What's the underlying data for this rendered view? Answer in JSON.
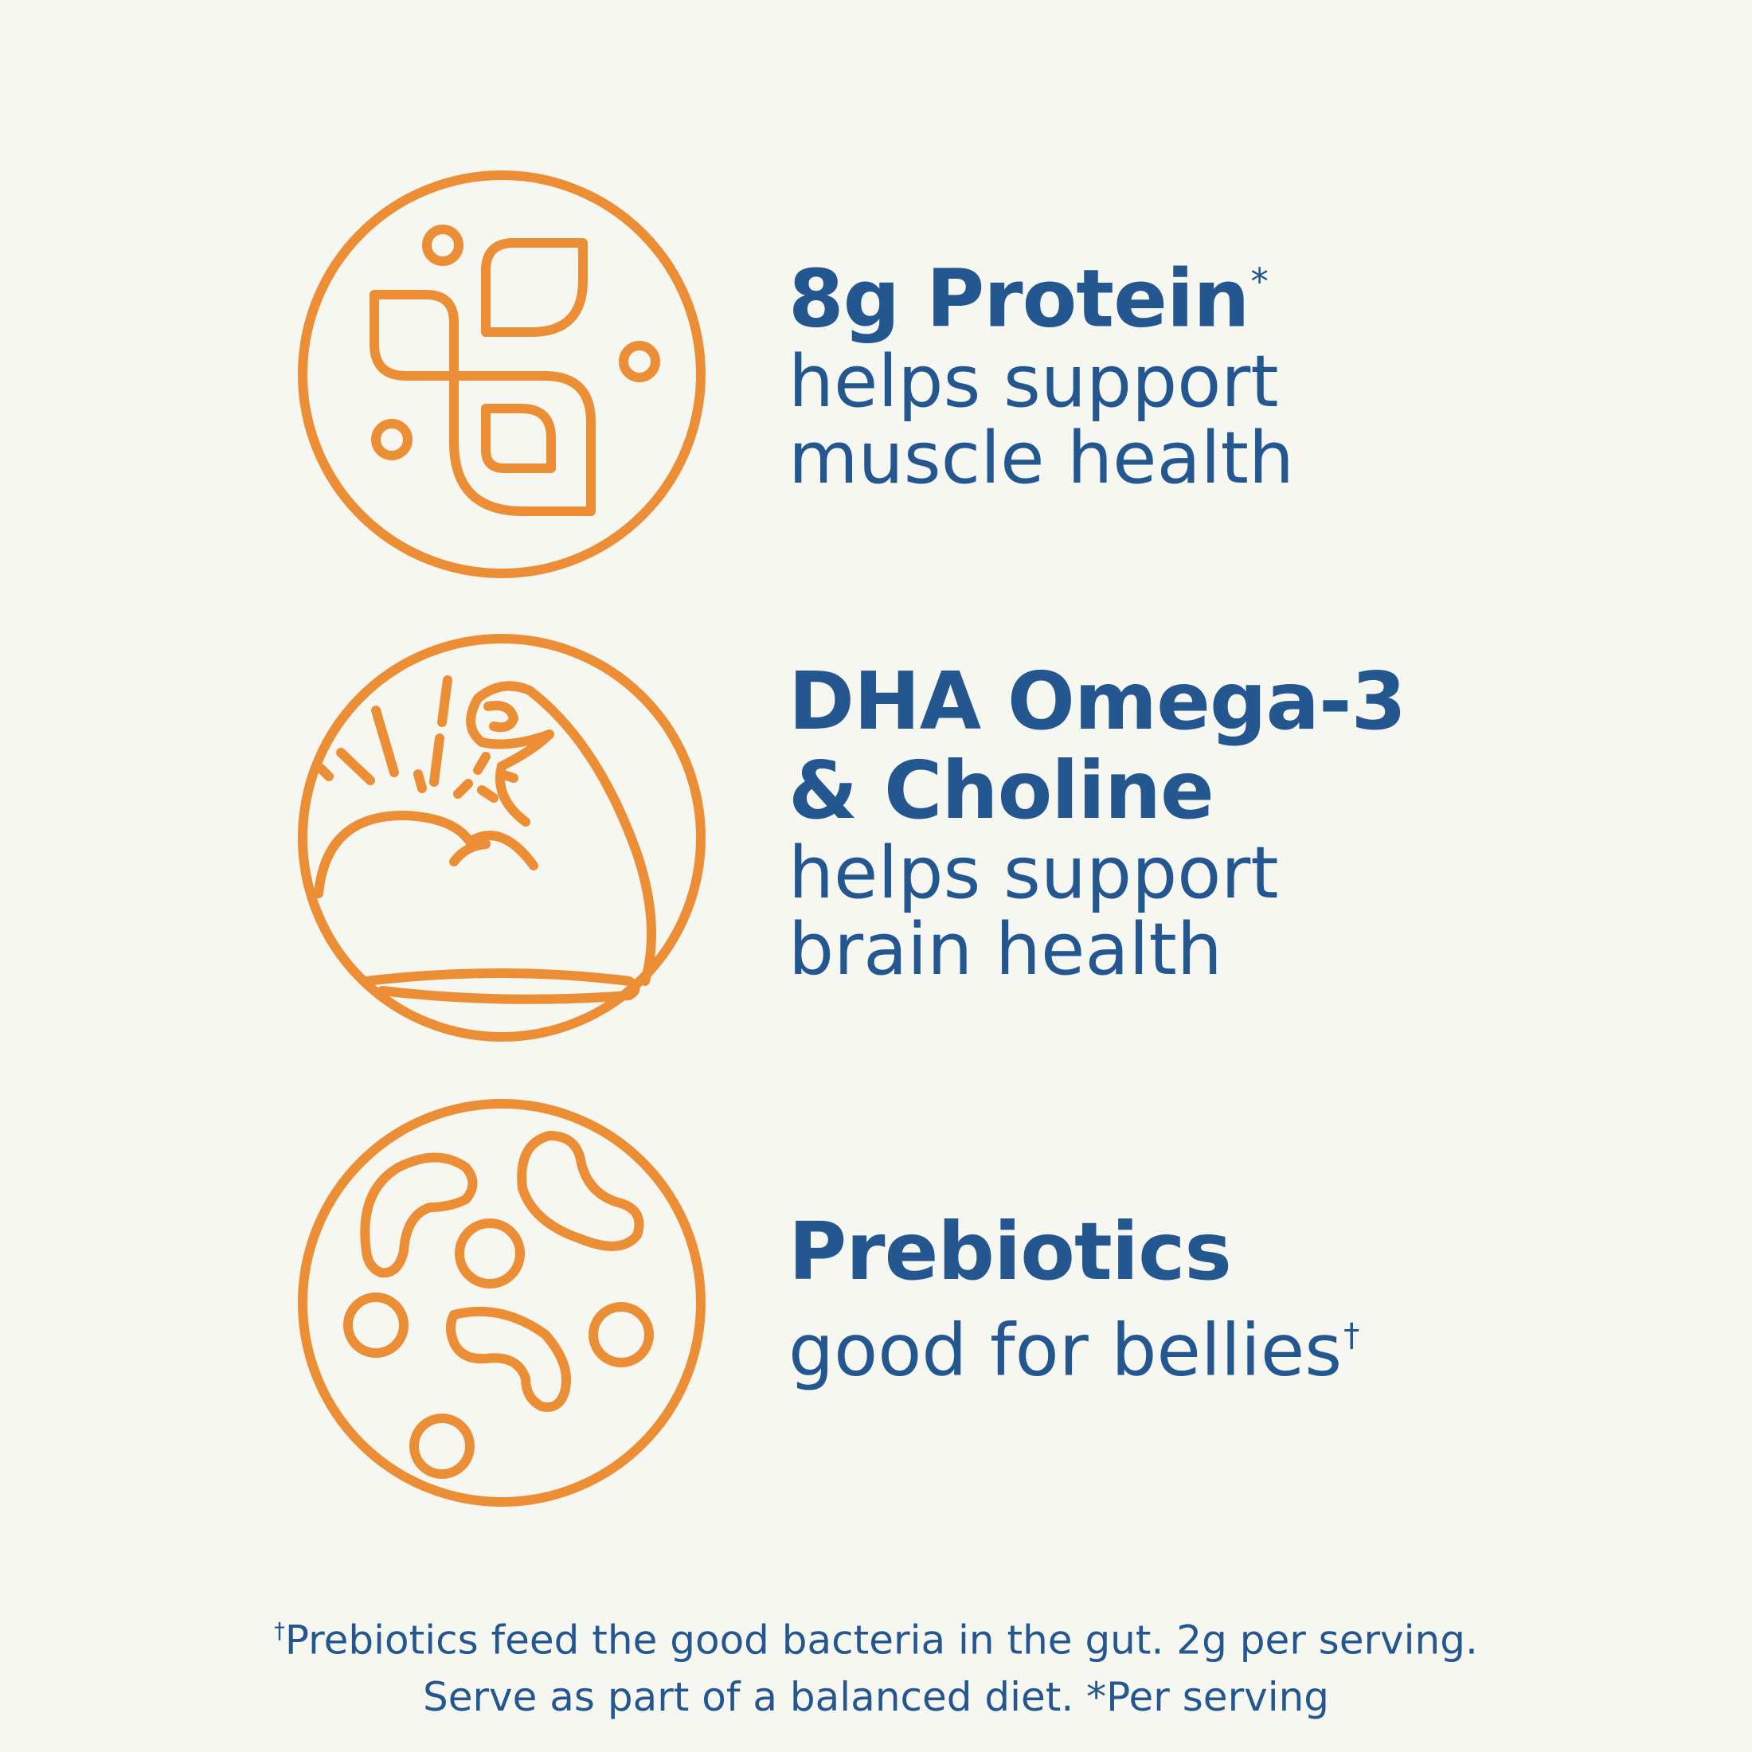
{
  "colors": {
    "background": "#f7f7f2",
    "icon_orange": "#ec8e35",
    "text_blue": "#24578f"
  },
  "features": [
    {
      "icon": "protein-molecule-icon",
      "heading": "8g Protein",
      "heading_mark": "*",
      "body_lines": [
        "helps support",
        "muscle health"
      ]
    },
    {
      "icon": "flexed-arm-icon",
      "heading_lines": [
        "DHA Omega-3",
        "& Choline"
      ],
      "body_lines": [
        "helps support",
        "brain health"
      ]
    },
    {
      "icon": "bacteria-icon",
      "heading": "Prebiotics",
      "body": "good for bellies",
      "body_mark": "†"
    }
  ],
  "footnote": {
    "mark": "†",
    "line1": "Prebiotics feed the good bacteria in the gut. 2g per serving.",
    "line2": "Serve as part of a balanced diet.  *Per serving"
  }
}
